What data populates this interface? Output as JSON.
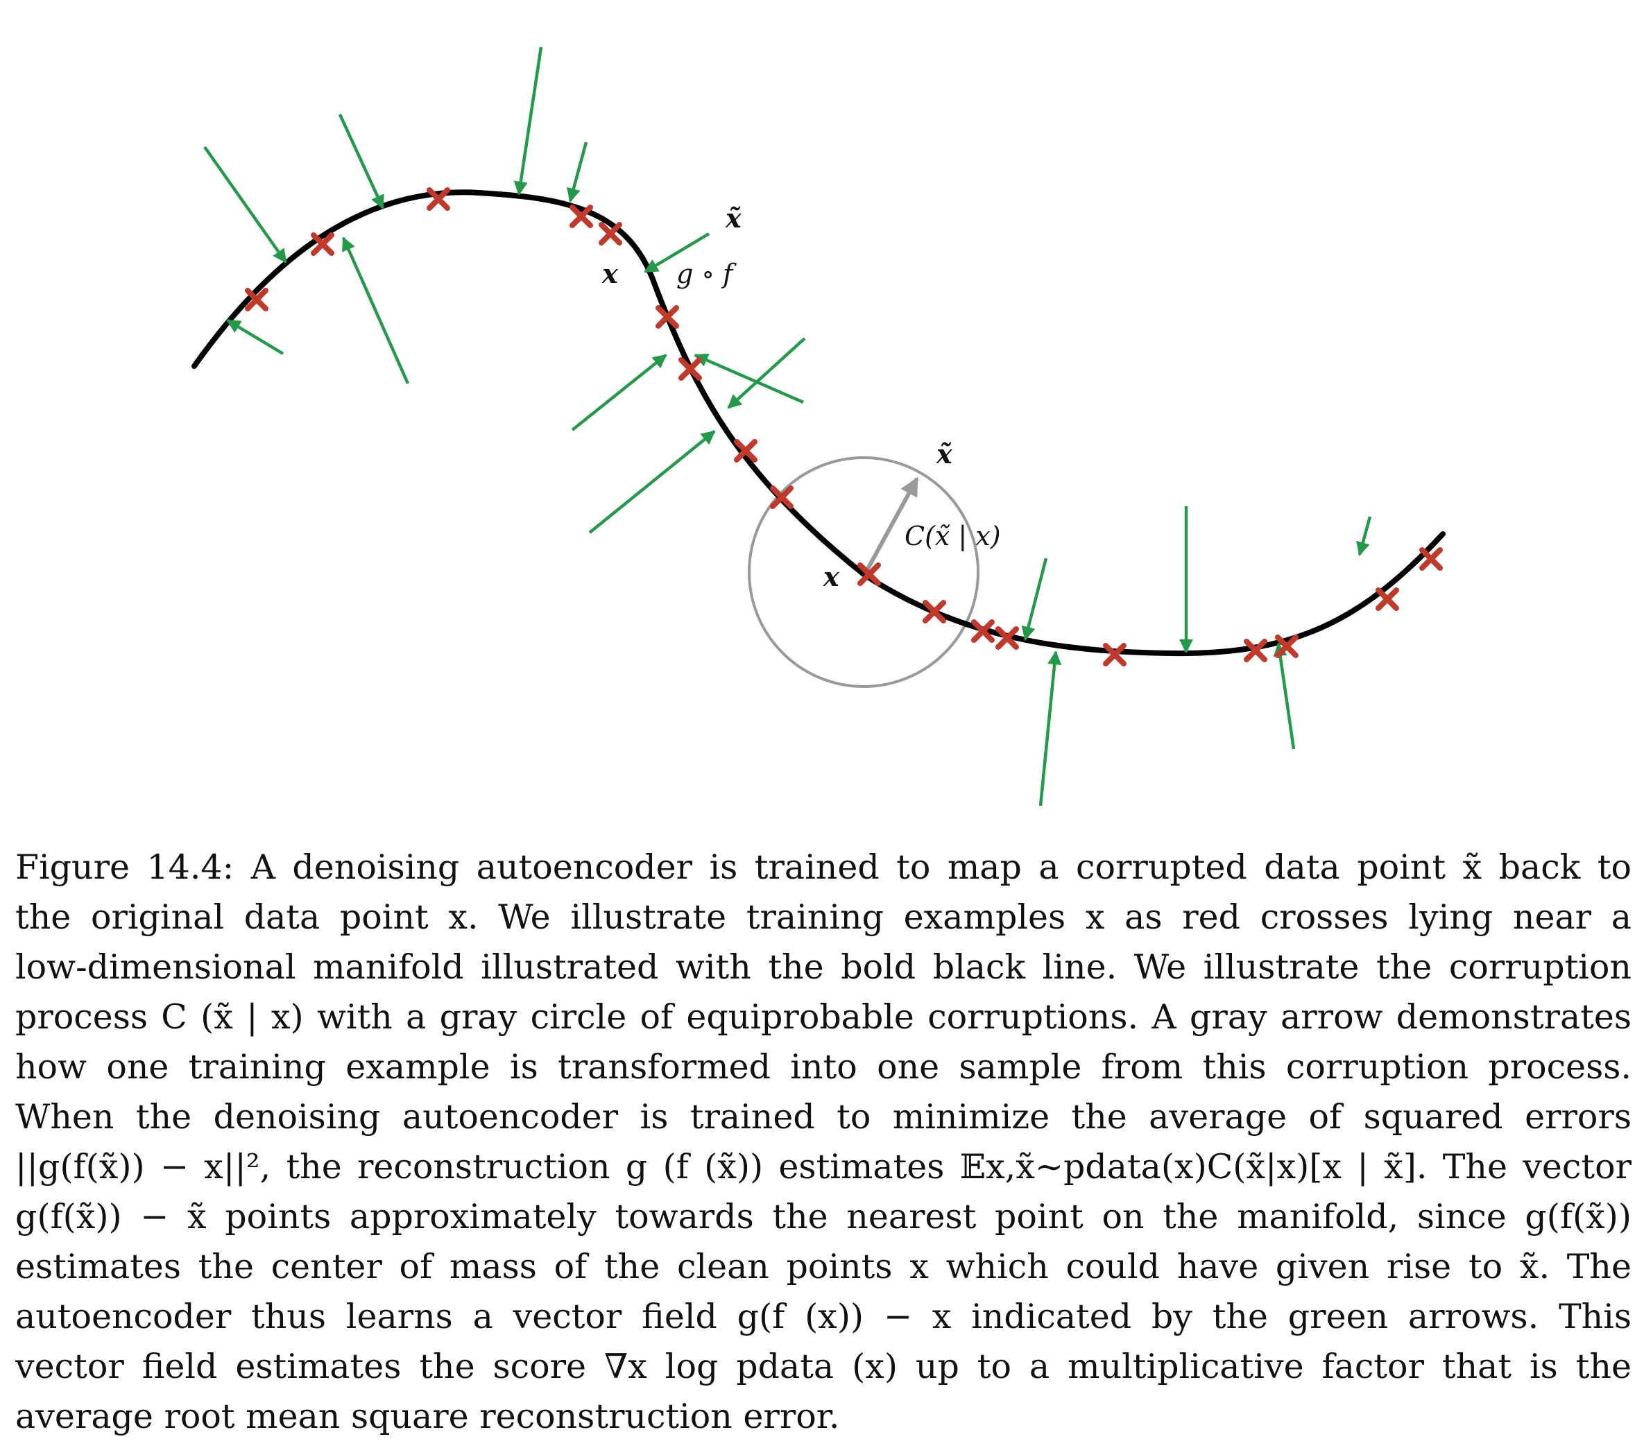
{
  "figure": {
    "labels": {
      "x_tilde_top": "x̃",
      "x_top": "x",
      "g_of_f": "g ∘ f",
      "x_tilde_circle": "x̃",
      "corruption": "C(x̃ | x)",
      "x_center": "x"
    },
    "colors": {
      "manifold": "#000000",
      "crosses": "#c0392b",
      "arrows": "#239a4a",
      "corruption": "#999999"
    }
  },
  "caption": {
    "lines": [
      "Figure 14.4: A denoising autoencoder is trained to map a corrupted data point x̃ back to",
      "the original data point x. We illustrate training examples x as red crosses lying near a",
      "low-dimensional manifold illustrated with the bold black line. We illustrate the corruption",
      "process C (x̃ | x) with a gray circle of equiprobable corruptions. A gray arrow demonstrates",
      "how one training example is transformed into one sample from this corruption process.",
      "When the denoising autoencoder is trained to minimize the average of squared errors",
      "||g(f(x̃)) − x||², the reconstruction g (f (x̃)) estimates 𝔼x,x̃∼pdata(x)C(x̃|x)[x | x̃]. The vector",
      "g(f(x̃)) − x̃ points approximately towards the nearest point on the manifold, since g(f(x̃))",
      "estimates the center of mass of the clean points x which could have given rise to x̃. The",
      "autoencoder thus learns a vector field g(f (x)) − x indicated by the green arrows. This",
      "vector field estimates the score ∇x log pdata (x) up to a multiplicative factor that is the",
      "average root mean square reconstruction error."
    ]
  }
}
